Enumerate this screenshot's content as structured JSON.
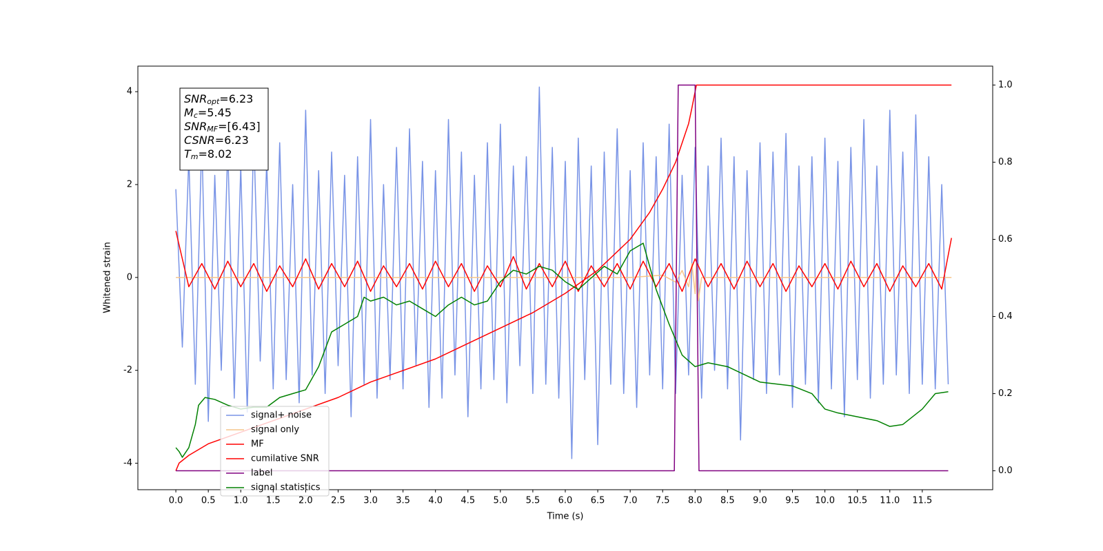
{
  "chart_data": {
    "type": "line",
    "xlabel": "Time (s)",
    "ylabel": "Whitened strain",
    "xlim": [
      -0.585,
      12.585
    ],
    "ylim": [
      -4.57,
      4.55
    ],
    "y2lim": [
      -0.049,
      1.049
    ],
    "xticks": [
      {
        "value": 0,
        "label": "0.0"
      },
      0.5,
      {
        "value": 1,
        "label": "1.0"
      },
      1.5,
      {
        "value": 2,
        "label": "2.0"
      },
      2.5,
      {
        "value": 3,
        "label": "3.0"
      },
      3.5,
      {
        "value": 4,
        "label": "4.0"
      },
      4.5,
      {
        "value": 5,
        "label": "5.0"
      },
      5.5,
      {
        "value": 6,
        "label": "6.0"
      },
      6.5,
      {
        "value": 7,
        "label": "7.0"
      },
      7.5,
      {
        "value": 8,
        "label": "8.0"
      },
      8.5,
      {
        "value": 9,
        "label": "9.0"
      },
      9.5,
      {
        "value": 10,
        "label": "10.0"
      },
      10.5,
      {
        "value": 11,
        "label": "11.0"
      },
      11.5
    ],
    "yticks": [
      -4,
      -2,
      0,
      2,
      4
    ],
    "y2ticks": [
      {
        "value": 0,
        "label": "0.0"
      },
      0.2,
      0.4,
      0.6,
      0.8,
      {
        "value": 1,
        "label": "1.0"
      }
    ],
    "legend": "lower left",
    "annotations": [
      {
        "symbol": "SNR",
        "subscript": "opt",
        "text": "=6.23"
      },
      {
        "symbol": "M",
        "subscript": "c",
        "text": "=5.45"
      },
      {
        "symbol": "SNR",
        "subscript": "MF",
        "text": "=[6.43]"
      },
      {
        "symbol": "CSNR",
        "text": "=6.23"
      },
      {
        "symbol": "T",
        "subscript": "m",
        "text": "=8.02"
      }
    ],
    "series": [
      {
        "name": "signal+ noise",
        "color": "#7893e6",
        "x": [
          0.0,
          0.1,
          0.2,
          0.3,
          0.4,
          0.5,
          0.6,
          0.7,
          0.8,
          0.9,
          1.0,
          1.1,
          1.2,
          1.3,
          1.4,
          1.5,
          1.6,
          1.7,
          1.8,
          1.9,
          2.0,
          2.1,
          2.2,
          2.3,
          2.4,
          2.5,
          2.6,
          2.7,
          2.8,
          2.9,
          3.0,
          3.1,
          3.2,
          3.3,
          3.4,
          3.5,
          3.6,
          3.7,
          3.8,
          3.9,
          4.0,
          4.1,
          4.2,
          4.3,
          4.4,
          4.5,
          4.6,
          4.7,
          4.8,
          4.9,
          5.0,
          5.1,
          5.2,
          5.3,
          5.4,
          5.5,
          5.6,
          5.7,
          5.8,
          5.9,
          6.0,
          6.1,
          6.2,
          6.3,
          6.4,
          6.5,
          6.6,
          6.7,
          6.8,
          6.9,
          7.0,
          7.1,
          7.2,
          7.3,
          7.4,
          7.5,
          7.6,
          7.7,
          7.8,
          7.9,
          8.0,
          8.1,
          8.2,
          8.3,
          8.4,
          8.5,
          8.6,
          8.7,
          8.8,
          8.9,
          9.0,
          9.1,
          9.2,
          9.3,
          9.4,
          9.5,
          9.6,
          9.7,
          9.8,
          9.9,
          10.0,
          10.1,
          10.2,
          10.3,
          10.4,
          10.5,
          10.6,
          10.7,
          10.8,
          10.9,
          11.0,
          11.1,
          11.2,
          11.3,
          11.4,
          11.5,
          11.6,
          11.7,
          11.8,
          11.9
        ],
        "values": [
          1.9,
          -1.5,
          2.6,
          -2.3,
          3.0,
          -3.1,
          2.2,
          -2.0,
          2.8,
          -2.6,
          2.4,
          -2.9,
          3.1,
          -1.8,
          2.5,
          -2.4,
          2.9,
          -2.2,
          2.0,
          -2.7,
          3.6,
          -2.1,
          2.3,
          -2.5,
          2.7,
          -1.9,
          2.2,
          -3.0,
          2.6,
          -2.3,
          3.4,
          -2.6,
          2.0,
          -2.2,
          2.8,
          -2.4,
          3.2,
          -1.9,
          2.5,
          -2.8,
          2.3,
          -2.6,
          3.4,
          -2.1,
          2.7,
          -3.0,
          2.2,
          -2.4,
          2.9,
          -2.2,
          3.3,
          -2.7,
          2.4,
          -1.9,
          2.6,
          -2.5,
          4.1,
          -2.3,
          2.8,
          -2.6,
          2.5,
          -3.9,
          3.0,
          -2.2,
          2.4,
          -3.6,
          2.7,
          -2.3,
          3.2,
          -2.5,
          2.3,
          -2.8,
          2.9,
          -2.1,
          2.6,
          -2.4,
          3.3,
          -2.5,
          2.2,
          -2.1,
          2.8,
          -2.6,
          2.4,
          -2.0,
          3.0,
          -2.4,
          2.6,
          -3.5,
          2.3,
          -2.2,
          2.9,
          -2.5,
          2.7,
          -2.1,
          3.1,
          -2.8,
          2.4,
          -2.3,
          2.6,
          -2.7,
          3.0,
          -2.4,
          2.5,
          -3.0,
          2.8,
          -2.2,
          3.4,
          -2.6,
          2.4,
          -2.3,
          3.6,
          -2.1,
          2.7,
          -2.5,
          3.5,
          -2.3,
          2.6,
          -2.4,
          2.0,
          -2.3
        ]
      },
      {
        "name": "signal only",
        "color": "#f6c58a",
        "x": [
          0,
          7.0,
          7.5,
          7.7,
          7.8,
          7.9,
          7.95,
          8.0,
          8.02,
          8.05,
          8.1,
          11.95
        ],
        "values": [
          0,
          0,
          0.05,
          -0.1,
          0.15,
          -0.2,
          0.3,
          -0.35,
          0.4,
          -0.5,
          0,
          0
        ]
      },
      {
        "name": "MF",
        "color": "#ff0000",
        "x": [
          0.0,
          0.2,
          0.4,
          0.6,
          0.8,
          1.0,
          1.2,
          1.4,
          1.6,
          1.8,
          2.0,
          2.2,
          2.4,
          2.6,
          2.8,
          3.0,
          3.2,
          3.4,
          3.6,
          3.8,
          4.0,
          4.2,
          4.4,
          4.6,
          4.8,
          5.0,
          5.2,
          5.4,
          5.6,
          5.8,
          6.0,
          6.2,
          6.4,
          6.6,
          6.8,
          7.0,
          7.2,
          7.4,
          7.6,
          7.8,
          8.0,
          8.2,
          8.4,
          8.6,
          8.8,
          9.0,
          9.2,
          9.4,
          9.6,
          9.8,
          10.0,
          10.2,
          10.4,
          10.6,
          10.8,
          11.0,
          11.2,
          11.4,
          11.6,
          11.8,
          11.95
        ],
        "values": [
          1.0,
          -0.2,
          0.3,
          -0.25,
          0.35,
          -0.2,
          0.3,
          -0.3,
          0.25,
          -0.2,
          0.4,
          -0.25,
          0.3,
          -0.2,
          0.35,
          -0.3,
          0.25,
          -0.2,
          0.3,
          -0.25,
          0.35,
          -0.2,
          0.3,
          -0.3,
          0.25,
          -0.2,
          0.45,
          -0.25,
          0.3,
          -0.2,
          0.35,
          -0.3,
          0.25,
          -0.2,
          0.3,
          -0.25,
          0.35,
          -0.2,
          0.3,
          -0.3,
          0.4,
          -0.2,
          0.3,
          -0.25,
          0.35,
          -0.2,
          0.3,
          -0.3,
          0.25,
          -0.2,
          0.3,
          -0.25,
          0.35,
          -0.2,
          0.3,
          -0.3,
          0.25,
          -0.2,
          0.3,
          -0.25,
          0.85
        ]
      },
      {
        "name": "cumilative SNR",
        "color": "#ff0000",
        "axis": "y2",
        "x": [
          0,
          0.05,
          0.2,
          0.5,
          1,
          1.5,
          2,
          2.5,
          3,
          3.5,
          4,
          4.5,
          5,
          5.5,
          6,
          6.5,
          7,
          7.3,
          7.5,
          7.7,
          7.8,
          7.9,
          7.95,
          8.02,
          11.95
        ],
        "values": [
          0,
          0.02,
          0.04,
          0.07,
          0.1,
          0.13,
          0.16,
          0.19,
          0.23,
          0.26,
          0.29,
          0.33,
          0.37,
          0.41,
          0.46,
          0.52,
          0.6,
          0.67,
          0.73,
          0.8,
          0.85,
          0.9,
          0.94,
          1.0,
          1.0
        ]
      },
      {
        "name": "label",
        "color": "#800080",
        "axis": "y2",
        "x": [
          0,
          7.68,
          7.74,
          8.0,
          8.06,
          11.9
        ],
        "values": [
          0,
          0,
          1,
          1,
          0,
          0
        ]
      },
      {
        "name": "signal statistics",
        "color": "#008000",
        "axis": "y2",
        "x": [
          0,
          0.05,
          0.1,
          0.2,
          0.3,
          0.35,
          0.45,
          0.6,
          0.8,
          1.0,
          1.2,
          1.4,
          1.6,
          1.8,
          2.0,
          2.2,
          2.4,
          2.6,
          2.8,
          2.9,
          3.0,
          3.2,
          3.4,
          3.6,
          3.8,
          4.0,
          4.2,
          4.4,
          4.6,
          4.8,
          5.0,
          5.2,
          5.4,
          5.6,
          5.8,
          6.0,
          6.2,
          6.4,
          6.6,
          6.8,
          7.0,
          7.2,
          7.4,
          7.6,
          7.8,
          8.0,
          8.2,
          8.5,
          9.0,
          9.5,
          9.8,
          10.0,
          10.2,
          10.5,
          10.8,
          11.0,
          11.2,
          11.5,
          11.7,
          11.9
        ],
        "values": [
          0.06,
          0.05,
          0.035,
          0.06,
          0.12,
          0.17,
          0.19,
          0.185,
          0.17,
          0.16,
          0.165,
          0.165,
          0.19,
          0.2,
          0.21,
          0.27,
          0.36,
          0.38,
          0.4,
          0.45,
          0.44,
          0.45,
          0.43,
          0.44,
          0.42,
          0.4,
          0.43,
          0.45,
          0.43,
          0.44,
          0.49,
          0.52,
          0.51,
          0.53,
          0.52,
          0.49,
          0.47,
          0.5,
          0.53,
          0.51,
          0.57,
          0.59,
          0.47,
          0.38,
          0.3,
          0.27,
          0.28,
          0.27,
          0.23,
          0.22,
          0.2,
          0.16,
          0.15,
          0.14,
          0.13,
          0.115,
          0.12,
          0.16,
          0.2,
          0.205
        ]
      }
    ]
  }
}
